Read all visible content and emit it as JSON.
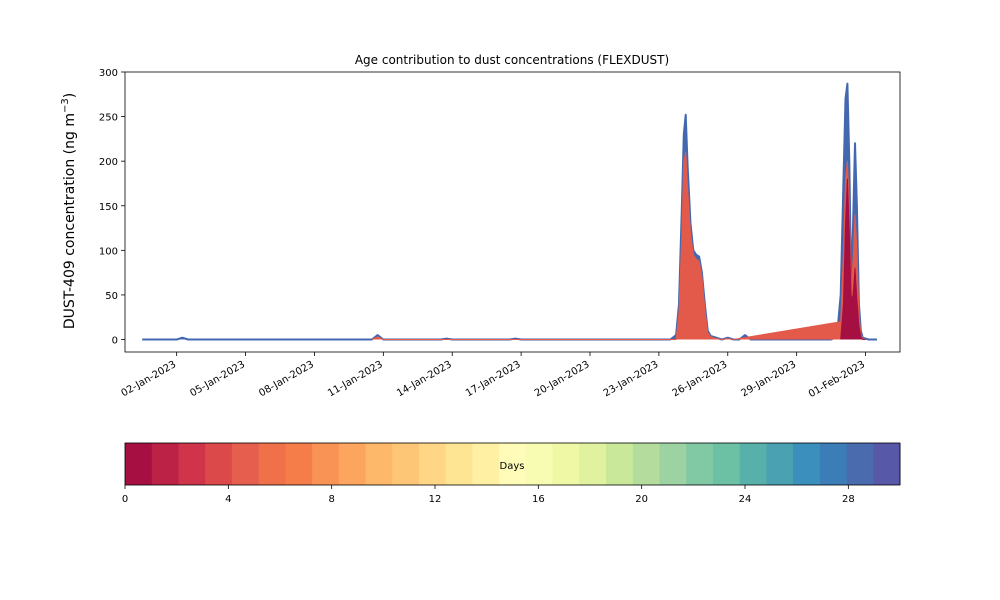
{
  "chart_data": {
    "type": "area",
    "title": "Age contribution to dust concentrations (FLEXDUST)",
    "ylabel_main": "DUST-409 concentration (ng m",
    "ylabel_sup": "−3",
    "ylabel_close": ")",
    "xlabel": "",
    "ylim": [
      -14,
      300
    ],
    "xlim": [
      "2022-12-30T18:00",
      "2023-02-02T12:00"
    ],
    "yticks": [
      0,
      50,
      100,
      150,
      200,
      250,
      300
    ],
    "xticks": [
      {
        "date": "2023-01-02",
        "label": "02-Jan-2023"
      },
      {
        "date": "2023-01-05",
        "label": "05-Jan-2023"
      },
      {
        "date": "2023-01-08",
        "label": "08-Jan-2023"
      },
      {
        "date": "2023-01-11",
        "label": "11-Jan-2023"
      },
      {
        "date": "2023-01-14",
        "label": "14-Jan-2023"
      },
      {
        "date": "2023-01-17",
        "label": "17-Jan-2023"
      },
      {
        "date": "2023-01-20",
        "label": "20-Jan-2023"
      },
      {
        "date": "2023-01-23",
        "label": "23-Jan-2023"
      },
      {
        "date": "2023-01-26",
        "label": "26-Jan-2023"
      },
      {
        "date": "2023-01-29",
        "label": "29-Jan-2023"
      },
      {
        "date": "2023-02-01",
        "label": "01-Feb-2023"
      }
    ],
    "series": [
      {
        "color": "#4468b0",
        "x": [
          "2022-12-31T12:00",
          "2023-01-02T00:00",
          "2023-01-02T06:00",
          "2023-01-02T12:00",
          "2023-01-10T12:00",
          "2023-01-10T18:00",
          "2023-01-11T00:00",
          "2023-01-13T12:00",
          "2023-01-13T18:00",
          "2023-01-14T00:00",
          "2023-01-16T12:00",
          "2023-01-16T18:00",
          "2023-01-17T00:00",
          "2023-01-23T12:00",
          "2023-01-23T18:00",
          "2023-01-23T21:00",
          "2023-01-24T00:00",
          "2023-01-24T02:00",
          "2023-01-24T04:00",
          "2023-01-24T06:00",
          "2023-01-24T09:00",
          "2023-01-24T12:00",
          "2023-01-24T15:00",
          "2023-01-24T18:00",
          "2023-01-24T21:00",
          "2023-01-25T00:00",
          "2023-01-25T03:00",
          "2023-01-25T06:00",
          "2023-01-25T12:00",
          "2023-01-25T18:00",
          "2023-01-26T00:00",
          "2023-01-26T06:00",
          "2023-01-26T12:00",
          "2023-01-26T18:00",
          "2023-01-27T00:00",
          "2023-01-27T06:00",
          "2023-01-27T12:00",
          "2023-01-30T06:00",
          "2023-01-30T12:00",
          "2023-01-30T18:00",
          "2023-01-30T22:00",
          "2023-01-31T01:00",
          "2023-01-31T03:00",
          "2023-01-31T05:00",
          "2023-01-31T07:00",
          "2023-01-31T09:00",
          "2023-01-31T11:00",
          "2023-01-31T13:00",
          "2023-01-31T15:00",
          "2023-01-31T17:00",
          "2023-01-31T19:00",
          "2023-01-31T21:00",
          "2023-02-01T00:00",
          "2023-02-01T03:00",
          "2023-02-01T06:00",
          "2023-02-01T12:00"
        ],
        "values": [
          0,
          0,
          2,
          0,
          0,
          5,
          0,
          0,
          1,
          0,
          0,
          1,
          0,
          0,
          5,
          40,
          150,
          230,
          252,
          195,
          130,
          100,
          95,
          93,
          75,
          40,
          10,
          4,
          2,
          0,
          2,
          0,
          0,
          5,
          0,
          0,
          0,
          0,
          0,
          3,
          50,
          180,
          270,
          287,
          200,
          60,
          130,
          220,
          150,
          40,
          10,
          2,
          1,
          0,
          0,
          0
        ]
      },
      {
        "color": "#e35a4a",
        "x": [
          "2023-01-10T12:00",
          "2023-01-10T18:00",
          "2023-01-11T00:00",
          "2023-01-23T18:00",
          "2023-01-23T21:00",
          "2023-01-24T00:00",
          "2023-01-24T02:00",
          "2023-01-24T04:00",
          "2023-01-24T06:00",
          "2023-01-24T09:00",
          "2023-01-24T12:00",
          "2023-01-24T15:00",
          "2023-01-24T18:00",
          "2023-01-24T21:00",
          "2023-01-25T00:00",
          "2023-01-25T03:00",
          "2023-01-25T06:00",
          "2023-01-25T12:00",
          "2023-01-25T18:00",
          "2023-01-26T00:00",
          "2023-01-26T06:00",
          "2023-01-30T22:00",
          "2023-01-31T01:00",
          "2023-01-31T03:00",
          "2023-01-31T05:00",
          "2023-01-31T07:00",
          "2023-01-31T09:00",
          "2023-01-31T11:00",
          "2023-01-31T13:00",
          "2023-01-31T15:00",
          "2023-01-31T17:00",
          "2023-01-31T19:00",
          "2023-01-31T21:00",
          "2023-02-01T00:00"
        ],
        "values": [
          0,
          3,
          0,
          0,
          30,
          120,
          200,
          210,
          170,
          120,
          95,
          90,
          88,
          70,
          35,
          8,
          3,
          1,
          0,
          1,
          0,
          20,
          100,
          180,
          200,
          150,
          50,
          90,
          140,
          100,
          30,
          5,
          1,
          0
        ]
      },
      {
        "color": "#a50f42",
        "x": [
          "2023-01-30T22:00",
          "2023-01-31T01:00",
          "2023-01-31T03:00",
          "2023-01-31T05:00",
          "2023-01-31T07:00",
          "2023-01-31T09:00",
          "2023-01-31T11:00",
          "2023-01-31T13:00",
          "2023-01-31T15:00",
          "2023-01-31T17:00",
          "2023-01-31T19:00",
          "2023-01-31T21:00",
          "2023-02-01T00:00"
        ],
        "values": [
          0,
          40,
          130,
          180,
          120,
          45,
          50,
          80,
          45,
          15,
          3,
          0,
          0
        ]
      }
    ],
    "colorbar": {
      "label": "Days",
      "ticks": [
        0,
        4,
        8,
        12,
        16,
        20,
        24,
        28
      ],
      "range": [
        0,
        30
      ],
      "colors": [
        "#a50f42",
        "#bc2146",
        "#cf344a",
        "#dc494a",
        "#e55e4e",
        "#ef7049",
        "#f57d4a",
        "#f99255",
        "#fca55e",
        "#fdb969",
        "#fdc676",
        "#fed685",
        "#fee593",
        "#fff0a3",
        "#fefcb8",
        "#f7fcb2",
        "#eef8a5",
        "#e0f29f",
        "#cae899",
        "#b4dd9d",
        "#9dd3a3",
        "#81c9a4",
        "#6cc1a5",
        "#58b0aa",
        "#4aa1b2",
        "#3a8fbc",
        "#3b7eb7",
        "#4a6cae",
        "#5758a8"
      ]
    }
  }
}
